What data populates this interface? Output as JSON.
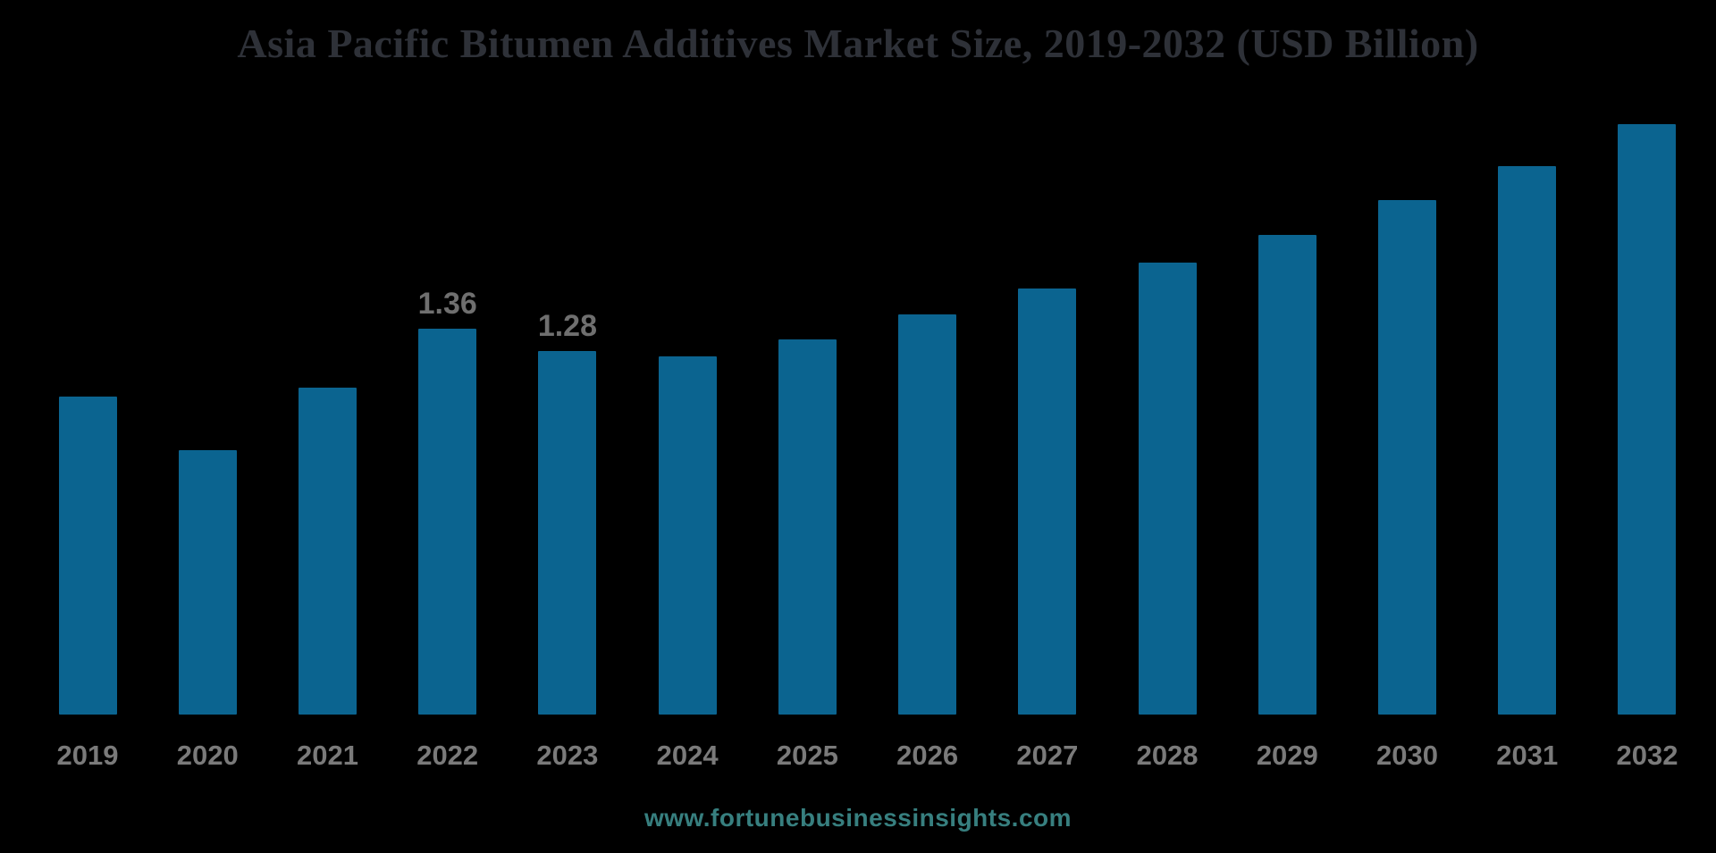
{
  "chart_data": {
    "type": "bar",
    "title": "Asia Pacific Bitumen Additives Market Size, 2019-2032 (USD Billion)",
    "categories": [
      "2019",
      "2020",
      "2021",
      "2022",
      "2023",
      "2024",
      "2025",
      "2026",
      "2027",
      "2028",
      "2029",
      "2030",
      "2031",
      "2032"
    ],
    "values": [
      1.12,
      0.93,
      1.15,
      1.36,
      1.28,
      1.26,
      1.32,
      1.41,
      1.5,
      1.59,
      1.69,
      1.81,
      1.93,
      2.08
    ],
    "data_labels": {
      "2022": "1.36",
      "2023": "1.28"
    },
    "xlabel": "",
    "ylabel": "",
    "ylim": [
      0,
      2.5
    ],
    "grid": false,
    "legend": false
  },
  "watermark": {
    "text": "www.fortunebusinessinsights.com"
  },
  "colors": {
    "background": "#000000",
    "bar": "#0b6490",
    "title": "#2e3138",
    "value_labels": "#6f6f6f",
    "year_labels": "#7a7a7a",
    "watermark": "#377f7f"
  }
}
